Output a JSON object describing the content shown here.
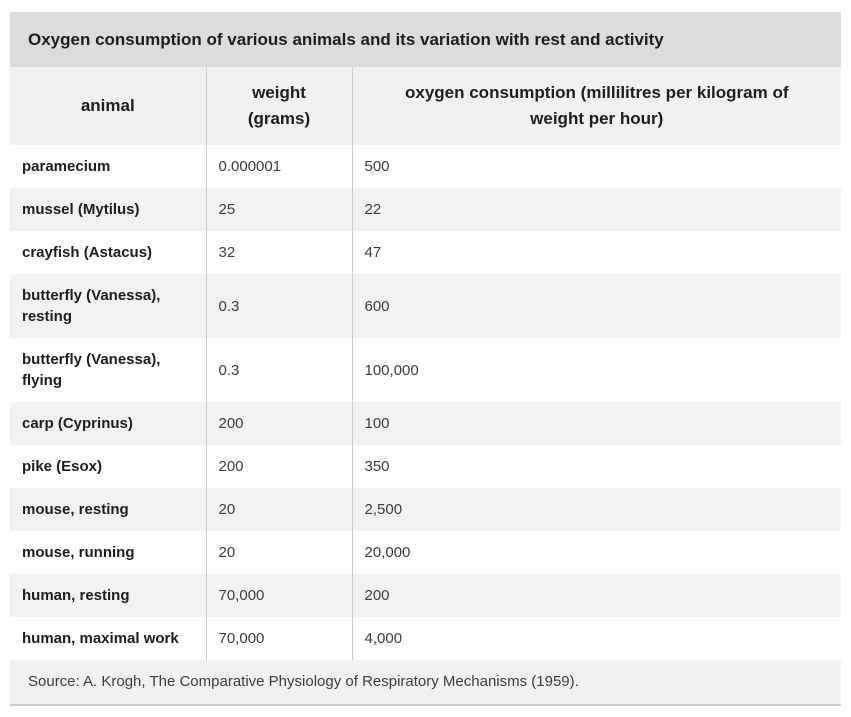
{
  "card": {
    "title": "Oxygen consumption of various animals and its variation with rest and activity",
    "source": "Source: A. Krogh, The Comparative Physiology of Respiratory Mechanisms (1959)."
  },
  "table": {
    "columns": [
      {
        "id": "animal",
        "label": "animal"
      },
      {
        "id": "weight",
        "label": "weight (grams)"
      },
      {
        "id": "oxygen",
        "label": "oxygen consumption (millilitres per kilogram of weight per hour)"
      }
    ],
    "rows": [
      {
        "animal": "paramecium",
        "weight": "0.000001",
        "oxygen": "500"
      },
      {
        "animal": "mussel (Mytilus)",
        "weight": "25",
        "oxygen": "22"
      },
      {
        "animal": "crayfish (Astacus)",
        "weight": "32",
        "oxygen": "47"
      },
      {
        "animal": "butterfly (Vanessa), resting",
        "weight": "0.3",
        "oxygen": "600"
      },
      {
        "animal": "butterfly (Vanessa), flying",
        "weight": "0.3",
        "oxygen": "100,000"
      },
      {
        "animal": "carp (Cyprinus)",
        "weight": "200",
        "oxygen": "100"
      },
      {
        "animal": "pike (Esox)",
        "weight": "200",
        "oxygen": "350"
      },
      {
        "animal": "mouse, resting",
        "weight": "20",
        "oxygen": "2,500"
      },
      {
        "animal": "mouse, running",
        "weight": "20",
        "oxygen": "20,000"
      },
      {
        "animal": "human, resting",
        "weight": "70,000",
        "oxygen": "200"
      },
      {
        "animal": "human, maximal work",
        "weight": "70,000",
        "oxygen": "4,000"
      }
    ]
  },
  "colors": {
    "title_bar_bg": "#dcdcdc",
    "header_bg": "#f1f1f1",
    "row_alt_bg": "#f2f2f2",
    "footer_bg": "#f1f1f1",
    "column_divider": "#cbcbcb",
    "bottom_border": "#cdcdcd",
    "heading_text": "#1d1d1d",
    "body_text": "#3c3c3c"
  }
}
